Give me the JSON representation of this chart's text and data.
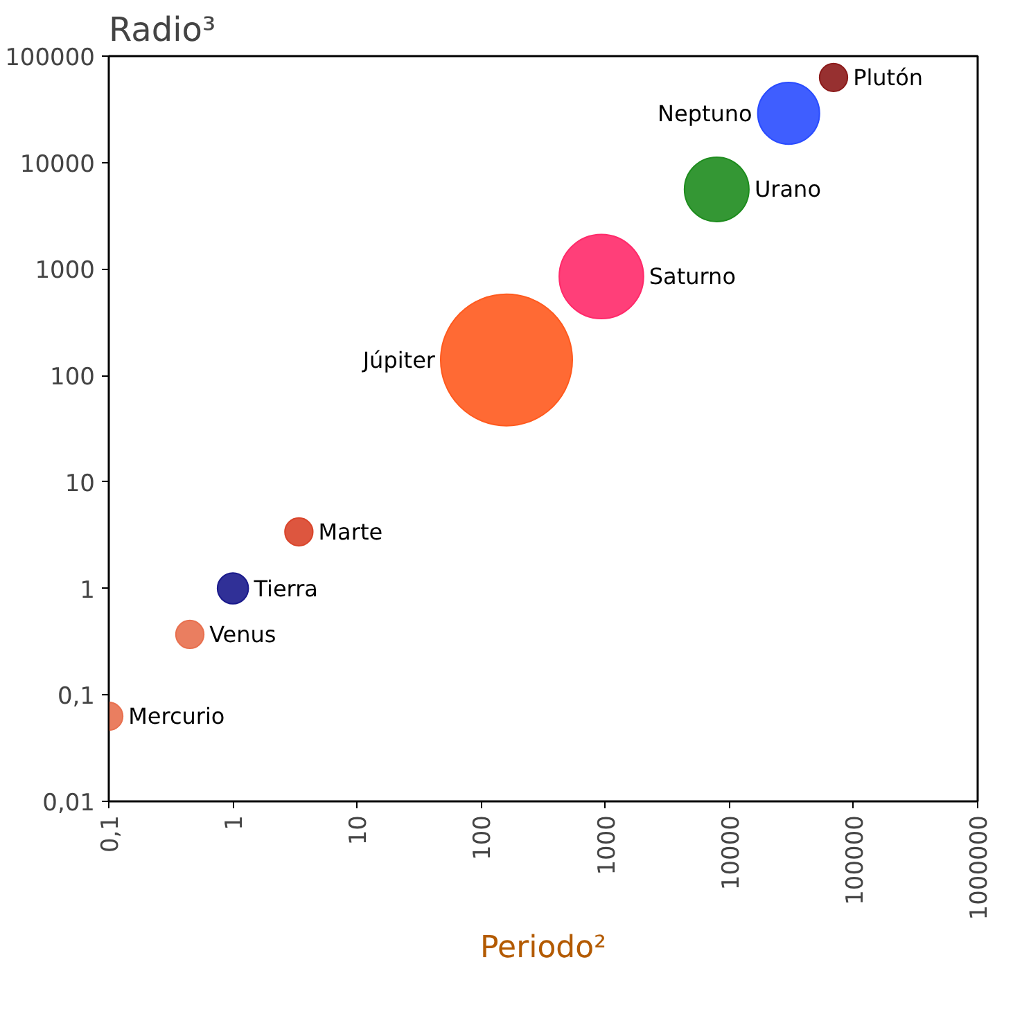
{
  "chart_data": {
    "type": "bubble",
    "ylabel": "Radio³",
    "xlabel": "Periodo²",
    "log": "xy",
    "grid": false,
    "legend": false,
    "xlim": [
      0.1,
      1000000
    ],
    "ylim": [
      0.01,
      100000
    ],
    "xticks": [
      {
        "value": 0.1,
        "label": "0,1"
      },
      1,
      10,
      100,
      1000,
      10000,
      100000,
      1000000
    ],
    "yticks": [
      {
        "value": 0.01,
        "label": "0,01"
      },
      {
        "value": 0.1,
        "label": "0,1"
      },
      1,
      10,
      100,
      1000,
      10000,
      100000
    ],
    "series": [
      {
        "name": "Mercurio",
        "color": "#e8704f",
        "x": [
          0.1
        ],
        "values": [
          0.063
        ],
        "sizes": [
          0.045
        ]
      },
      {
        "name": "Venus",
        "color": "#e8704f",
        "x": [
          0.45
        ],
        "values": [
          0.37
        ],
        "sizes": [
          0.045
        ]
      },
      {
        "name": "Tierra",
        "color": "#1a1a8c",
        "x": [
          1
        ],
        "values": [
          1
        ],
        "sizes": [
          0.055
        ]
      },
      {
        "name": "Marte",
        "color": "#d9442a",
        "x": [
          3.4
        ],
        "values": [
          3.4
        ],
        "sizes": [
          0.045
        ]
      },
      {
        "name": "Júpiter",
        "color": "#ff5a1e",
        "x": [
          160
        ],
        "values": [
          140
        ],
        "sizes": [
          1
        ]
      },
      {
        "name": "Saturno",
        "color": "#ff2a6a",
        "x": [
          930
        ],
        "values": [
          850
        ],
        "sizes": [
          0.41
        ]
      },
      {
        "name": "Urano",
        "color": "#1e8c1e",
        "x": [
          7900
        ],
        "values": [
          5600
        ],
        "sizes": [
          0.24
        ]
      },
      {
        "name": "Neptuno",
        "color": "#2a4cff",
        "x": [
          30000
        ],
        "values": [
          29000
        ],
        "sizes": [
          0.22
        ]
      },
      {
        "name": "Plutón",
        "color": "#8c1a1a",
        "x": [
          69000
        ],
        "values": [
          63000
        ],
        "sizes": [
          0.045
        ]
      }
    ]
  }
}
